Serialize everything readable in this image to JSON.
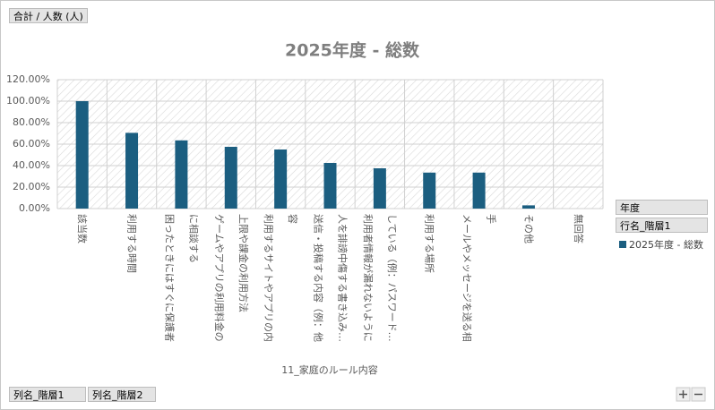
{
  "chart_data": {
    "type": "bar",
    "title": "2025年度 - 総数",
    "categories": [
      [
        "該当数"
      ],
      [
        "利用する時間"
      ],
      [
        "困ったときにはすぐに保護者",
        "に相談する"
      ],
      [
        "ゲームやアプリの利用料金の",
        "上限や課金の利用方法"
      ],
      [
        "利用するサイトやアプリの内",
        "容"
      ],
      [
        "送信・投稿する内容（例：他",
        "人を誹謗中傷する書き込み…"
      ],
      [
        "利用者情報が漏れないように",
        "している（例：パスワード…"
      ],
      [
        "利用する場所"
      ],
      [
        "メールやメッセージを送る相",
        "手"
      ],
      [
        "その他"
      ],
      [
        "無回答"
      ]
    ],
    "series": [
      {
        "name": "2025年度 - 総数",
        "color": "#1b5e80",
        "values": [
          100,
          70.5,
          63.5,
          57.5,
          55,
          42.5,
          37.5,
          33.5,
          33.5,
          3,
          0
        ]
      }
    ],
    "ylim": [
      0,
      120
    ],
    "yticks": [
      {
        "value": 0,
        "label": "0.00%"
      },
      {
        "value": 20,
        "label": "20.00%"
      },
      {
        "value": 40,
        "label": "40.00%"
      },
      {
        "value": 60,
        "label": "60.00%"
      },
      {
        "value": 80,
        "label": "80.00%"
      },
      {
        "value": 100,
        "label": "100.00%"
      },
      {
        "value": 120,
        "label": "120.00%"
      }
    ],
    "x_axis_label": "11_家庭のルール内容",
    "grid": true,
    "legend": "right"
  },
  "ui": {
    "value_button": "合計 / 人数 (人)",
    "row_fields": [
      "年度",
      "行名_階層1"
    ],
    "column_fields": [
      "列名_階層1",
      "列名_階層2"
    ]
  }
}
